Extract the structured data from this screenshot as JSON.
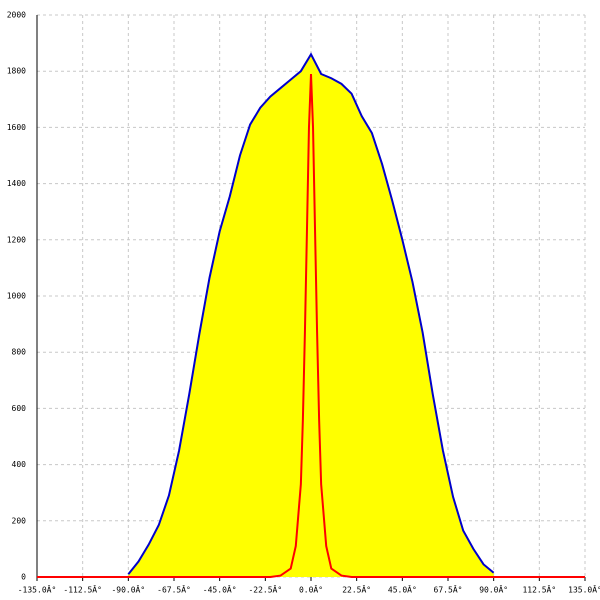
{
  "chart_data": {
    "type": "area",
    "xlim": [
      -135,
      135
    ],
    "ylim": [
      0,
      2000
    ],
    "xticks": [
      {
        "value": -135,
        "label": "-135.0Â°"
      },
      {
        "value": -112.5,
        "label": "-112.5Â°"
      },
      {
        "value": -90,
        "label": "-90.0Â°"
      },
      {
        "value": -67.5,
        "label": "-67.5Â°"
      },
      {
        "value": -45,
        "label": "-45.0Â°"
      },
      {
        "value": -22.5,
        "label": "-22.5Â°"
      },
      {
        "value": 0,
        "label": "0.0Â°"
      },
      {
        "value": 22.5,
        "label": "22.5Â°"
      },
      {
        "value": 45,
        "label": "45.0Â°"
      },
      {
        "value": 67.5,
        "label": "67.5Â°"
      },
      {
        "value": 90,
        "label": "90.0Â°"
      },
      {
        "value": 112.5,
        "label": "112.5Â°"
      },
      {
        "value": 135,
        "label": "135.0Â°"
      }
    ],
    "yticks": [
      0,
      200,
      400,
      600,
      800,
      1000,
      1200,
      1400,
      1600,
      1800,
      2000
    ],
    "grid": true,
    "series": [
      {
        "color": "#0000cc",
        "fill": "#ffff00",
        "x": [
          -90,
          -85,
          -80,
          -75,
          -70,
          -65,
          -60,
          -55,
          -50,
          -45,
          -40,
          -35,
          -30,
          -25,
          -20,
          -15,
          -10,
          -5,
          0,
          5,
          10,
          15,
          20,
          25,
          30,
          35,
          40,
          45,
          50,
          55,
          60,
          65,
          70,
          75,
          80,
          85,
          90
        ],
        "values": [
          10,
          55,
          115,
          185,
          290,
          450,
          650,
          865,
          1065,
          1230,
          1355,
          1500,
          1610,
          1670,
          1710,
          1740,
          1770,
          1800,
          1860,
          1790,
          1775,
          1755,
          1720,
          1640,
          1580,
          1470,
          1340,
          1200,
          1050,
          870,
          650,
          450,
          285,
          165,
          100,
          45,
          15
        ]
      },
      {
        "color": "#ff0000",
        "x": [
          -135,
          -20,
          -15,
          -10,
          -7.5,
          -5,
          -4,
          -3,
          -2,
          -1,
          0,
          1,
          2,
          3,
          4,
          5,
          7.5,
          10,
          15,
          20,
          135
        ],
        "values": [
          0,
          0,
          5,
          30,
          110,
          330,
          560,
          870,
          1230,
          1600,
          1790,
          1600,
          1230,
          870,
          560,
          330,
          110,
          30,
          5,
          0,
          0
        ]
      }
    ]
  }
}
